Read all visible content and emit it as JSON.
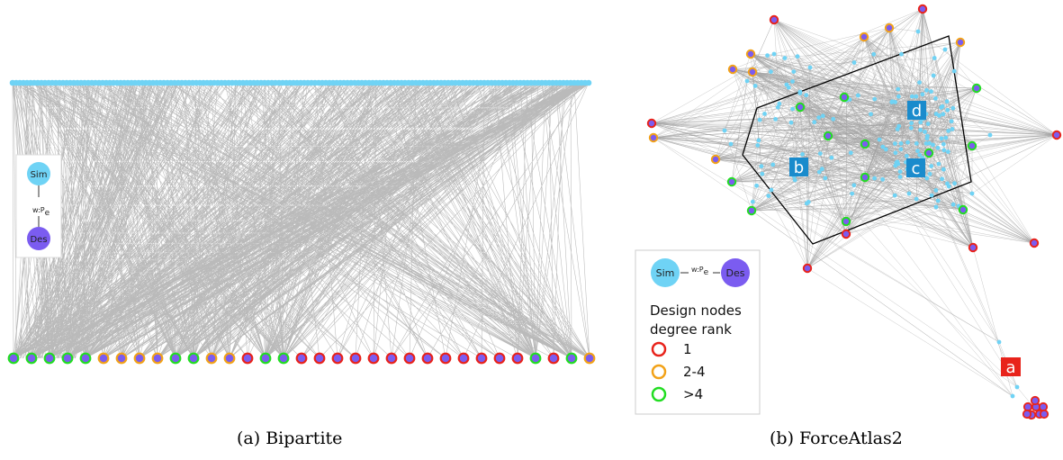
{
  "captions": {
    "a": "(a) Bipartite",
    "b": "(b) ForceAtlas2"
  },
  "node_legend": {
    "sim": "Sim",
    "des": "Des",
    "edge": "w:P",
    "edge_sub": "e"
  },
  "rank_legend": {
    "title_line1": "Design nodes",
    "title_line2": "degree rank",
    "items": [
      {
        "label": "1",
        "color": "#e8231b"
      },
      {
        "label": "2-4",
        "color": "#f2a218"
      },
      {
        "label": ">4",
        "color": "#22dd22"
      }
    ]
  },
  "clusters": {
    "a": "a",
    "b": "b",
    "c": "c",
    "d": "d"
  },
  "colors": {
    "sim_node": "#6fd3f5",
    "des_node": "#7b5cf0",
    "edge": "#a3a3a3",
    "cluster_red": "#e8231b",
    "cluster_blue": "#1a8bcc"
  },
  "design_node_ranks": [
    "g",
    "g",
    "g",
    "g",
    "g",
    "o",
    "o",
    "o",
    "o",
    "g",
    "g",
    "o",
    "o",
    "r",
    "g",
    "g",
    "r",
    "r",
    "r",
    "r",
    "r",
    "r",
    "r",
    "r",
    "r",
    "r",
    "r",
    "r",
    "r",
    "g",
    "r",
    "g",
    "o"
  ]
}
